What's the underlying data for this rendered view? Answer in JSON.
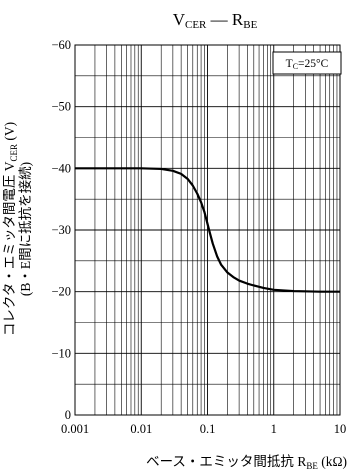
{
  "chart_data": {
    "type": "line",
    "title": {
      "main": "V",
      "main_sub": "CER",
      "dash": " — ",
      "second": "R",
      "second_sub": "BE"
    },
    "xlabel": {
      "text": "ベース・エミッタ間抵抗 ",
      "symbol": "R",
      "symbol_sub": "BE",
      "unit": " (kΩ)"
    },
    "ylabel": {
      "line1": "コレクタ・エミッタ間電圧 ",
      "line1_symbol": "V",
      "line1_symbol_sub": "CER",
      "line1_unit": " (V)",
      "line2": "(B・E間に抵抗を接続)"
    },
    "annotation": {
      "text": "T",
      "sub": "C",
      "rest": "=25°C"
    },
    "x_scale": "log",
    "xlim": [
      0.001,
      10
    ],
    "ylim": [
      0,
      -60
    ],
    "grid": true,
    "x_ticks": [
      0.001,
      0.01,
      0.1,
      1,
      10
    ],
    "x_tick_labels": [
      "0.001",
      "0.01",
      "0.1",
      "1",
      "10"
    ],
    "y_ticks": [
      0,
      -10,
      -20,
      -30,
      -40,
      -50,
      -60
    ],
    "y_tick_labels": [
      "0",
      "−10",
      "−20",
      "−30",
      "−40",
      "−50",
      "−60"
    ],
    "series": [
      {
        "x": [
          0.001,
          0.005,
          0.01,
          0.02,
          0.03,
          0.04,
          0.05,
          0.06,
          0.07,
          0.08,
          0.09,
          0.1,
          0.11,
          0.12,
          0.14,
          0.16,
          0.2,
          0.25,
          0.3,
          0.4,
          0.5,
          0.7,
          1,
          2,
          5,
          10
        ],
        "y": [
          -40,
          -40,
          -40,
          -39.9,
          -39.6,
          -39.1,
          -38.3,
          -37.2,
          -35.9,
          -34.5,
          -32.9,
          -31.0,
          -29.3,
          -27.8,
          -25.7,
          -24.4,
          -23.1,
          -22.3,
          -21.8,
          -21.3,
          -21.0,
          -20.6,
          -20.3,
          -20.1,
          -20.0,
          -20.0
        ]
      }
    ],
    "color": "#000000"
  }
}
